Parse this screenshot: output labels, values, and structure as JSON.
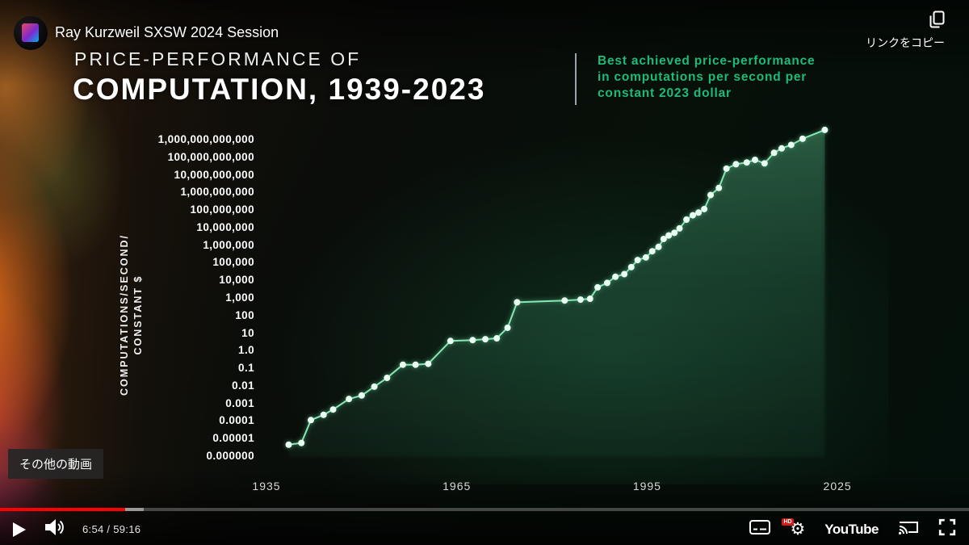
{
  "player": {
    "video_title": "Ray Kurzweil SXSW 2024 Session",
    "copy_link_label": "リンクをコピー",
    "more_videos_badge": "その他の動画",
    "time_display": "6:54 / 59:16",
    "youtube_wordmark": "YouTube",
    "hd_badge": "HD",
    "progress": {
      "played_percent": 12.9,
      "buffered_percent": 14.8
    },
    "colors": {
      "progress_red": "#ff0000"
    }
  },
  "chart": {
    "title_line1": "PRICE-PERFORMANCE OF",
    "title_line2": "COMPUTATION, 1939-2023",
    "annotation": [
      "Best achieved price-performance",
      "in computations per second per",
      "constant 2023 dollar"
    ],
    "annotation_color": "#1dbb79",
    "y_axis_title": [
      "COMPUTATIONS/SECOND/",
      "CONSTANT $"
    ],
    "line_color": "#86e8b4",
    "dot_color": "#e8fff2"
  },
  "chart_data": {
    "type": "line",
    "title": "PRICE-PERFORMANCE OF COMPUTATION, 1939-2023",
    "subtitle": "Best achieved price-performance in computations per second per constant 2023 dollar",
    "xlabel": "",
    "ylabel": "COMPUTATIONS/SECOND/CONSTANT $",
    "y_scale": "log10",
    "y_log_top": 12,
    "y_log_bottom": -6,
    "x_range": [
      1935,
      2029
    ],
    "x_tick_years": [
      1935,
      1965,
      1995,
      2025
    ],
    "x_tick_labels": [
      "1935",
      "1965",
      "1995",
      "2025"
    ],
    "y_tick_labels": [
      "1,000,000,000,000",
      "100,000,000,000",
      "10,000,000,000",
      "1,000,000,000",
      "100,000,000",
      "10,000,000",
      "1,000,000",
      "100,000",
      "10,000",
      "1,000",
      "100",
      "10",
      "1.0",
      "0.1",
      "0.01",
      "0.001",
      "0.0001",
      "0.00001",
      "0.000000"
    ],
    "grid": false,
    "legend": "none",
    "points_year_log10": [
      [
        1938.5,
        -5.3
      ],
      [
        1940.5,
        -5.2
      ],
      [
        1942,
        -3.9
      ],
      [
        1944,
        -3.6
      ],
      [
        1945.5,
        -3.3
      ],
      [
        1948,
        -2.7
      ],
      [
        1950,
        -2.5
      ],
      [
        1952,
        -2.0
      ],
      [
        1954,
        -1.5
      ],
      [
        1956.5,
        -0.75
      ],
      [
        1958.5,
        -0.75
      ],
      [
        1960.5,
        -0.7
      ],
      [
        1964,
        0.6
      ],
      [
        1967.5,
        0.65
      ],
      [
        1969.5,
        0.7
      ],
      [
        1971.3,
        0.75
      ],
      [
        1973,
        1.35
      ],
      [
        1974.5,
        2.8
      ],
      [
        1982,
        2.9
      ],
      [
        1984.5,
        2.95
      ],
      [
        1986,
        3.0
      ],
      [
        1987.2,
        3.65
      ],
      [
        1988.7,
        3.9
      ],
      [
        1990,
        4.25
      ],
      [
        1991.4,
        4.4
      ],
      [
        1992.5,
        4.8
      ],
      [
        1993.5,
        5.2
      ],
      [
        1994.8,
        5.35
      ],
      [
        1995.8,
        5.7
      ],
      [
        1996.8,
        5.95
      ],
      [
        1997.6,
        6.4
      ],
      [
        1998.4,
        6.6
      ],
      [
        1999.3,
        6.75
      ],
      [
        2000.1,
        7.0
      ],
      [
        2001.2,
        7.5
      ],
      [
        2002.2,
        7.75
      ],
      [
        2003.1,
        7.9
      ],
      [
        2004,
        8.1
      ],
      [
        2005,
        8.9
      ],
      [
        2006.3,
        9.3
      ],
      [
        2007.5,
        10.4
      ],
      [
        2009,
        10.65
      ],
      [
        2010.7,
        10.75
      ],
      [
        2012,
        10.9
      ],
      [
        2013.5,
        10.7
      ],
      [
        2015,
        11.3
      ],
      [
        2016.2,
        11.55
      ],
      [
        2017.7,
        11.75
      ],
      [
        2019.5,
        12.1
      ],
      [
        2023,
        12.6
      ]
    ]
  }
}
